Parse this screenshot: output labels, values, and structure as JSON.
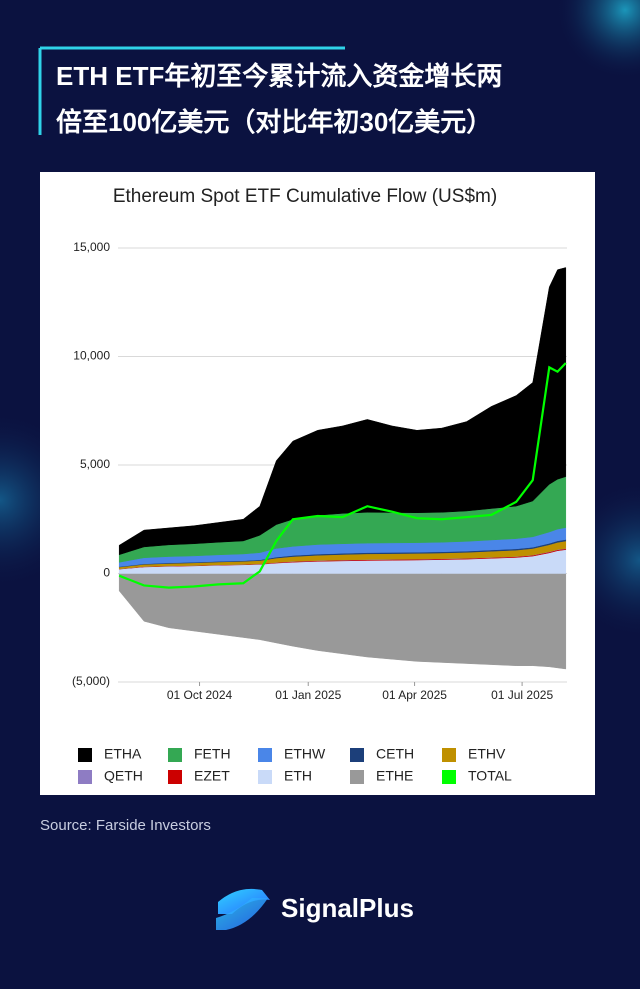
{
  "header": {
    "title": [
      "ETH ETF年初至今累计流入资金增长两",
      "倍至100亿美元（对比年初30亿美元）"
    ]
  },
  "chart_data": {
    "type": "stacked_area",
    "title": "Ethereum Spot ETF Cumulative Flow (US$m)",
    "x": [
      "2024-07-25",
      "2024-08-15",
      "2024-09-05",
      "2024-09-26",
      "2024-10-17",
      "2024-11-07",
      "2024-11-21",
      "2024-12-05",
      "2024-12-19",
      "2025-01-09",
      "2025-01-30",
      "2025-02-20",
      "2025-03-13",
      "2025-04-03",
      "2025-04-24",
      "2025-05-15",
      "2025-06-05",
      "2025-06-26",
      "2025-07-10",
      "2025-07-24",
      "2025-07-31",
      "2025-08-07"
    ],
    "xlim": [
      "2024-07-24",
      "2025-08-08"
    ],
    "xticks": [
      {
        "value": "2024-10-01",
        "label": "01 Oct 2024"
      },
      {
        "value": "2025-01-01",
        "label": "01 Jan 2025"
      },
      {
        "value": "2025-04-01",
        "label": "01 Apr 2025"
      },
      {
        "value": "2025-07-01",
        "label": "01 Jul 2025"
      }
    ],
    "ylim": [
      -5000,
      15000
    ],
    "yticks": [
      {
        "value": -5000,
        "label": "(5,000)"
      },
      0,
      {
        "value": 5000,
        "label": "5,000"
      },
      {
        "value": 10000,
        "label": "10,000"
      },
      {
        "value": 15000,
        "label": "15,000"
      }
    ],
    "grid": true,
    "legend": "bottom",
    "series": [
      {
        "name": "ETHA",
        "color": "#000000",
        "values": [
          435,
          775,
          780,
          830,
          910,
          1000,
          1340,
          2945,
          3600,
          3915,
          4030,
          4280,
          3990,
          3800,
          3880,
          4120,
          4705,
          5095,
          5460,
          9090,
          9655,
          9635
        ]
      },
      {
        "name": "FETH",
        "color": "#34a853",
        "values": [
          350,
          500,
          540,
          560,
          580,
          600,
          800,
          1100,
          1250,
          1350,
          1400,
          1420,
          1400,
          1380,
          1380,
          1400,
          1450,
          1500,
          1650,
          2200,
          2300,
          2350
        ]
      },
      {
        "name": "ETHW",
        "color": "#4a86e8",
        "values": [
          200,
          280,
          290,
          290,
          300,
          310,
          330,
          400,
          420,
          440,
          440,
          440,
          440,
          440,
          440,
          450,
          460,
          470,
          480,
          520,
          540,
          550
        ]
      },
      {
        "name": "CETH",
        "color": "#1c3f7a",
        "values": [
          20,
          25,
          30,
          30,
          30,
          30,
          35,
          45,
          50,
          55,
          55,
          55,
          55,
          55,
          55,
          55,
          60,
          60,
          60,
          65,
          70,
          70
        ]
      },
      {
        "name": "ETHV",
        "color": "#bf9000",
        "values": [
          80,
          100,
          110,
          120,
          130,
          140,
          150,
          200,
          220,
          240,
          250,
          260,
          260,
          260,
          260,
          270,
          280,
          290,
          300,
          320,
          330,
          340
        ]
      },
      {
        "name": "QETH",
        "color": "#8e7cc3",
        "values": [
          5,
          5,
          5,
          5,
          5,
          5,
          5,
          5,
          10,
          10,
          10,
          10,
          10,
          10,
          10,
          10,
          10,
          10,
          10,
          15,
          15,
          15
        ]
      },
      {
        "name": "EZET",
        "color": "#cc0000",
        "values": [
          10,
          15,
          15,
          15,
          15,
          15,
          20,
          25,
          30,
          30,
          35,
          35,
          35,
          35,
          35,
          35,
          35,
          35,
          40,
          40,
          40,
          40
        ]
      },
      {
        "name": "ETH",
        "color": "#c9daf8",
        "values": [
          200,
          300,
          330,
          350,
          380,
          400,
          420,
          480,
          520,
          560,
          580,
          600,
          610,
          620,
          640,
          660,
          700,
          740,
          800,
          950,
          1050,
          1100
        ]
      },
      {
        "name": "ETHE",
        "color": "#999999",
        "values": [
          -800,
          -2200,
          -2500,
          -2650,
          -2800,
          -2950,
          -3050,
          -3200,
          -3350,
          -3550,
          -3700,
          -3850,
          -3950,
          -4050,
          -4100,
          -4150,
          -4200,
          -4250,
          -4250,
          -4300,
          -4350,
          -4400
        ]
      },
      {
        "name": "TOTAL",
        "color": "#00ff00",
        "line": true,
        "values": [
          -100,
          -550,
          -650,
          -600,
          -500,
          -450,
          100,
          1500,
          2500,
          2650,
          2600,
          3100,
          2850,
          2550,
          2500,
          2600,
          2700,
          3300,
          4300,
          9500,
          9300,
          9700
        ]
      }
    ]
  },
  "footer": {
    "source": "Source: Farside Investors",
    "brand": "SignalPlus"
  }
}
